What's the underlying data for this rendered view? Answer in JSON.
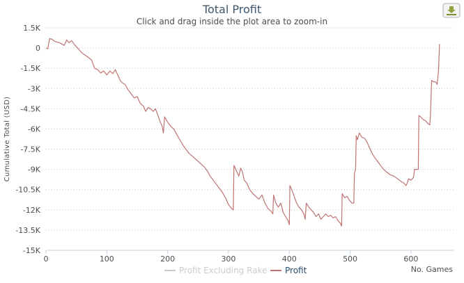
{
  "chart_data": {
    "type": "line",
    "title": "Total Profit",
    "subtitle": "Click and drag inside the plot area to zoom-in",
    "xlabel": "No. Games",
    "ylabel": "Cumulative Total (USD)",
    "xlim": [
      0,
      670
    ],
    "ylim": [
      -15000,
      1500
    ],
    "xticks": [
      0,
      100,
      200,
      300,
      400,
      500,
      600
    ],
    "yticks": [
      1500,
      0,
      -1500,
      -3000,
      -4500,
      -6000,
      -7500,
      -9000,
      -10500,
      -12000,
      -13500,
      -15000
    ],
    "ytick_labels": [
      "1.5K",
      "0",
      "-1.5K",
      "-3K",
      "-4.5K",
      "-6K",
      "-7.5K",
      "-9K",
      "-10.5K",
      "-12K",
      "-13.5K",
      "-15K"
    ],
    "grid": "horizontal dotted",
    "legend_position": "bottom",
    "series": [
      {
        "name": "Profit Excluding Rake",
        "color": "#cccccc",
        "hidden": true,
        "points": []
      },
      {
        "name": "Profit",
        "color": "#c07373",
        "points": [
          [
            0,
            0
          ],
          [
            3,
            -50
          ],
          [
            6,
            700
          ],
          [
            10,
            650
          ],
          [
            14,
            500
          ],
          [
            18,
            450
          ],
          [
            22,
            400
          ],
          [
            26,
            300
          ],
          [
            30,
            200
          ],
          [
            34,
            600
          ],
          [
            38,
            400
          ],
          [
            42,
            550
          ],
          [
            46,
            300
          ],
          [
            50,
            100
          ],
          [
            55,
            -150
          ],
          [
            60,
            -400
          ],
          [
            65,
            -550
          ],
          [
            70,
            -700
          ],
          [
            75,
            -900
          ],
          [
            80,
            -1500
          ],
          [
            85,
            -1600
          ],
          [
            90,
            -1850
          ],
          [
            95,
            -1700
          ],
          [
            100,
            -2000
          ],
          [
            105,
            -1700
          ],
          [
            110,
            -1900
          ],
          [
            114,
            -1600
          ],
          [
            118,
            -2000
          ],
          [
            122,
            -2400
          ],
          [
            126,
            -2600
          ],
          [
            130,
            -2700
          ],
          [
            135,
            -3100
          ],
          [
            140,
            -3400
          ],
          [
            145,
            -3700
          ],
          [
            150,
            -3600
          ],
          [
            155,
            -4100
          ],
          [
            160,
            -4300
          ],
          [
            164,
            -4700
          ],
          [
            168,
            -4400
          ],
          [
            172,
            -4500
          ],
          [
            176,
            -4700
          ],
          [
            180,
            -4500
          ],
          [
            184,
            -5000
          ],
          [
            188,
            -5500
          ],
          [
            191,
            -5800
          ],
          [
            193,
            -6300
          ],
          [
            195,
            -5100
          ],
          [
            200,
            -5500
          ],
          [
            205,
            -5800
          ],
          [
            210,
            -6000
          ],
          [
            215,
            -6400
          ],
          [
            220,
            -6800
          ],
          [
            225,
            -7200
          ],
          [
            230,
            -7500
          ],
          [
            235,
            -7800
          ],
          [
            240,
            -8000
          ],
          [
            245,
            -8200
          ],
          [
            250,
            -8400
          ],
          [
            255,
            -8600
          ],
          [
            260,
            -8800
          ],
          [
            265,
            -9100
          ],
          [
            270,
            -9500
          ],
          [
            275,
            -9800
          ],
          [
            280,
            -10100
          ],
          [
            285,
            -10400
          ],
          [
            290,
            -10700
          ],
          [
            295,
            -11100
          ],
          [
            300,
            -11600
          ],
          [
            305,
            -11900
          ],
          [
            308,
            -12000
          ],
          [
            309,
            -8700
          ],
          [
            313,
            -9100
          ],
          [
            317,
            -9500
          ],
          [
            320,
            -8900
          ],
          [
            323,
            -9200
          ],
          [
            326,
            -9800
          ],
          [
            330,
            -10000
          ],
          [
            335,
            -10500
          ],
          [
            340,
            -10800
          ],
          [
            345,
            -11000
          ],
          [
            350,
            -11200
          ],
          [
            355,
            -10900
          ],
          [
            360,
            -11500
          ],
          [
            365,
            -11900
          ],
          [
            370,
            -12100
          ],
          [
            373,
            -12300
          ],
          [
            374,
            -10900
          ],
          [
            378,
            -11500
          ],
          [
            382,
            -11800
          ],
          [
            386,
            -11500
          ],
          [
            390,
            -12200
          ],
          [
            394,
            -12500
          ],
          [
            398,
            -12800
          ],
          [
            400,
            -13100
          ],
          [
            401,
            -10200
          ],
          [
            404,
            -10500
          ],
          [
            408,
            -11000
          ],
          [
            412,
            -11500
          ],
          [
            416,
            -11800
          ],
          [
            420,
            -12000
          ],
          [
            424,
            -12300
          ],
          [
            426,
            -12700
          ],
          [
            428,
            -11500
          ],
          [
            432,
            -11800
          ],
          [
            436,
            -12000
          ],
          [
            440,
            -12200
          ],
          [
            444,
            -12500
          ],
          [
            448,
            -12300
          ],
          [
            452,
            -12700
          ],
          [
            456,
            -12500
          ],
          [
            460,
            -12300
          ],
          [
            464,
            -12500
          ],
          [
            468,
            -12400
          ],
          [
            472,
            -12600
          ],
          [
            476,
            -12500
          ],
          [
            480,
            -12800
          ],
          [
            484,
            -13000
          ],
          [
            486,
            -13200
          ],
          [
            487,
            -10800
          ],
          [
            491,
            -11100
          ],
          [
            495,
            -11000
          ],
          [
            499,
            -11300
          ],
          [
            503,
            -11500
          ],
          [
            506,
            -11500
          ],
          [
            507,
            -9300
          ],
          [
            509,
            -9000
          ],
          [
            510,
            -6500
          ],
          [
            512,
            -6800
          ],
          [
            515,
            -6300
          ],
          [
            519,
            -6600
          ],
          [
            524,
            -6700
          ],
          [
            528,
            -7000
          ],
          [
            532,
            -7400
          ],
          [
            536,
            -7800
          ],
          [
            540,
            -8100
          ],
          [
            545,
            -8400
          ],
          [
            550,
            -8700
          ],
          [
            555,
            -9000
          ],
          [
            560,
            -9200
          ],
          [
            566,
            -9400
          ],
          [
            572,
            -9500
          ],
          [
            578,
            -9700
          ],
          [
            584,
            -9900
          ],
          [
            588,
            -10000
          ],
          [
            592,
            -10200
          ],
          [
            594,
            -10000
          ],
          [
            596,
            -9700
          ],
          [
            600,
            -9800
          ],
          [
            604,
            -9600
          ],
          [
            606,
            -9000
          ],
          [
            612,
            -9000
          ],
          [
            613,
            -5000
          ],
          [
            616,
            -5100
          ],
          [
            620,
            -5300
          ],
          [
            624,
            -5400
          ],
          [
            628,
            -5600
          ],
          [
            631,
            -5700
          ],
          [
            632,
            -5000
          ],
          [
            634,
            -2400
          ],
          [
            637,
            -2500
          ],
          [
            640,
            -2500
          ],
          [
            642,
            -2600
          ],
          [
            643,
            -2700
          ],
          [
            645,
            -1800
          ],
          [
            646,
            -900
          ],
          [
            647,
            300
          ]
        ]
      }
    ]
  },
  "export_button": {
    "icon": "download-icon"
  }
}
